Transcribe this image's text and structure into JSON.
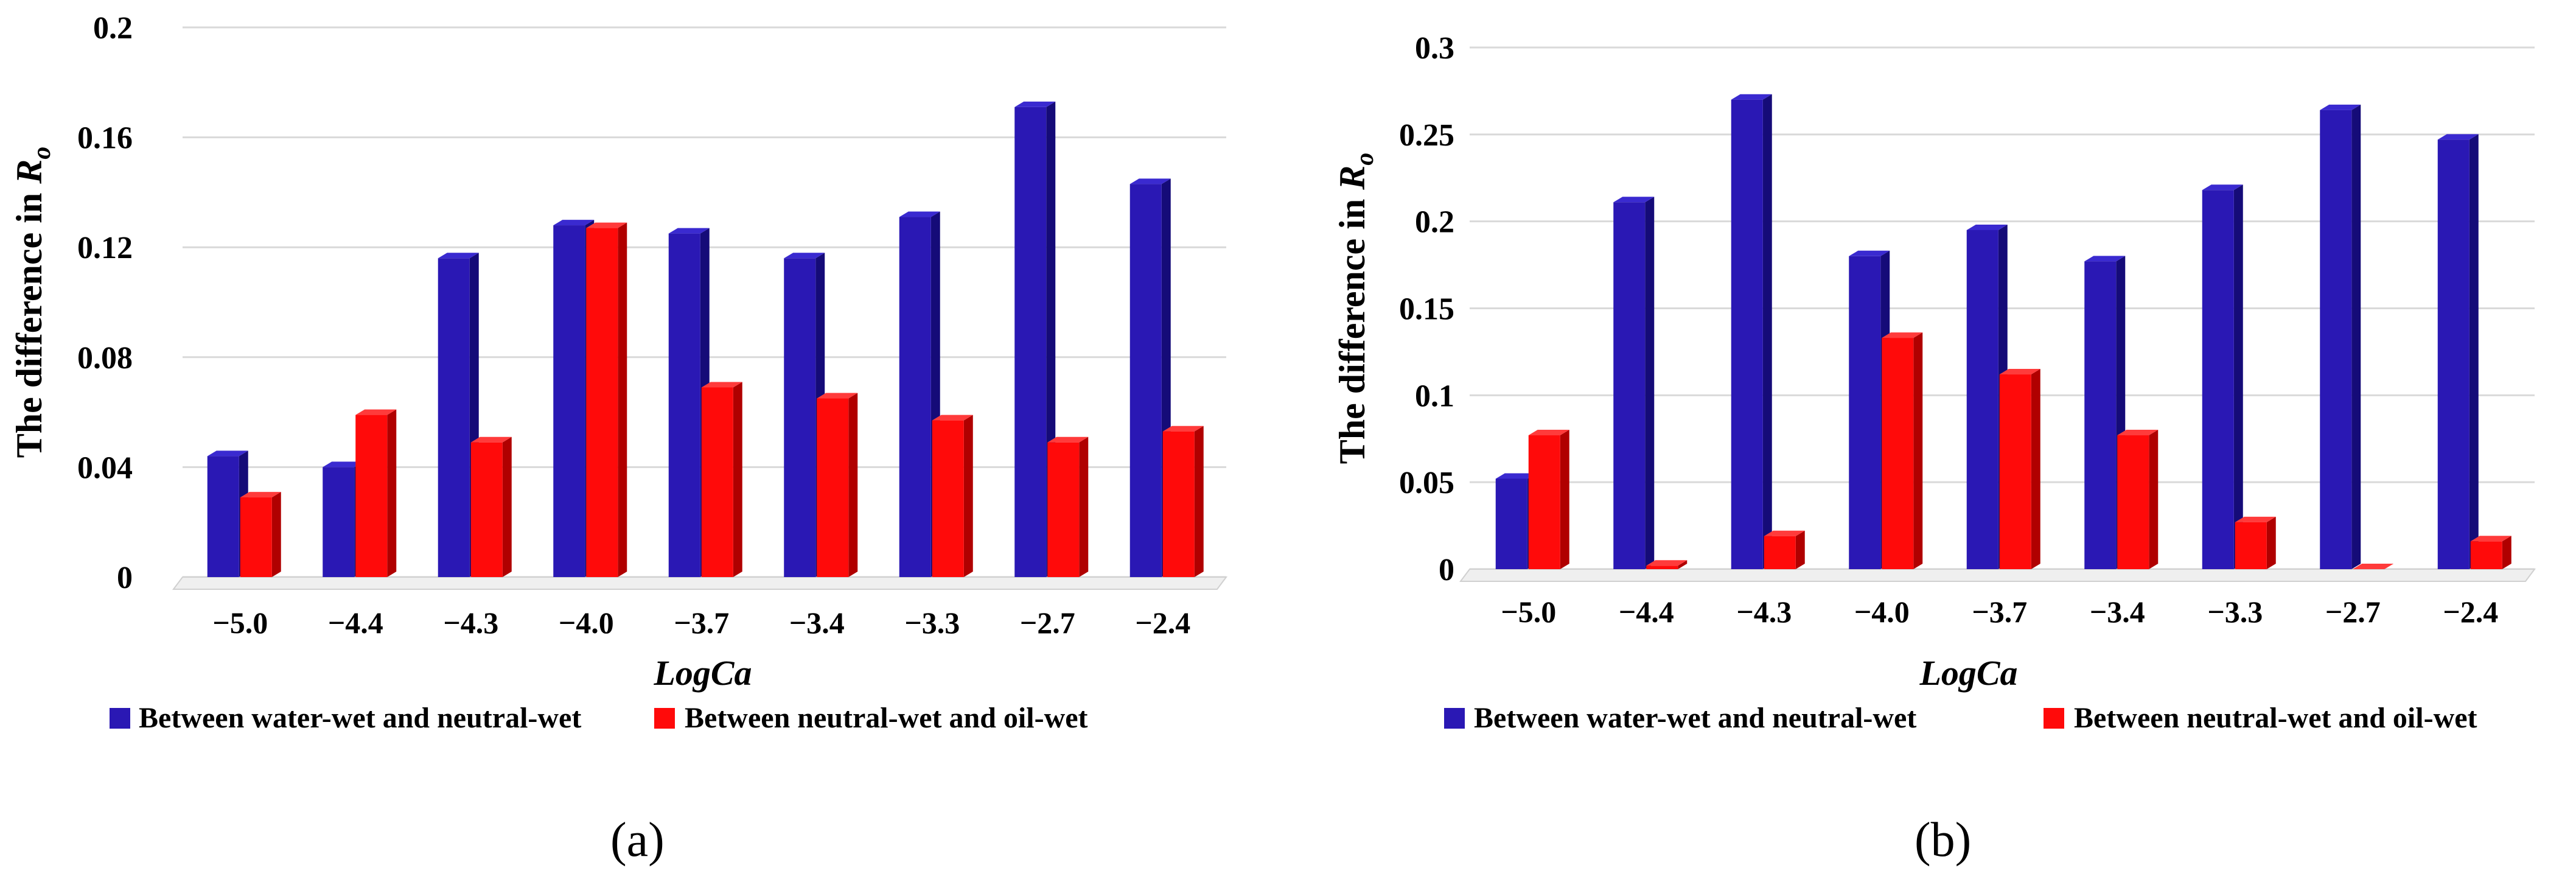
{
  "colors": {
    "series1": "#2a18b4",
    "series1_side": "#150b78",
    "series1_top": "#3a2ad0",
    "series2": "#ff0a0a",
    "series2_side": "#b00000",
    "series2_top": "#ff3b3b",
    "grid": "#d9d9d9",
    "text": "#000000"
  },
  "chart_data": [
    {
      "type": "bar",
      "panel": "a",
      "sublabel": "(a)",
      "xlabel": "LogCa",
      "ylabel": "The difference in R",
      "ylabel_sub": "o",
      "ylim": [
        0,
        0.2
      ],
      "yticks": [
        "0",
        "0.04",
        "0.08",
        "0.12",
        "0.16",
        "0.2"
      ],
      "ytick_values": [
        0,
        0.04,
        0.08,
        0.12,
        0.16,
        0.2
      ],
      "categories": [
        "−5.0",
        "−4.4",
        "−4.3",
        "−4.0",
        "−3.7",
        "−3.4",
        "−3.3",
        "−2.7",
        "−2.4"
      ],
      "series": [
        {
          "name": "Between water-wet and neutral-wet",
          "values": [
            0.044,
            0.04,
            0.116,
            0.128,
            0.125,
            0.116,
            0.131,
            0.171,
            0.143
          ]
        },
        {
          "name": "Between neutral-wet and oil-wet",
          "values": [
            0.029,
            0.059,
            0.049,
            0.127,
            0.069,
            0.065,
            0.057,
            0.049,
            0.053
          ]
        }
      ],
      "legend": "bottom",
      "grid": true
    },
    {
      "type": "bar",
      "panel": "b",
      "sublabel": "(b)",
      "xlabel": "LogCa",
      "ylabel": "The difference in R",
      "ylabel_sub": "o",
      "ylim": [
        0,
        0.3
      ],
      "yticks": [
        "0",
        "0.05",
        "0.1",
        "0.15",
        "0.2",
        "0.25",
        "0.3"
      ],
      "ytick_values": [
        0,
        0.05,
        0.1,
        0.15,
        0.2,
        0.25,
        0.3
      ],
      "categories": [
        "−5.0",
        "−4.4",
        "−4.3",
        "−4.0",
        "−3.7",
        "−3.4",
        "−3.3",
        "−2.7",
        "−2.4"
      ],
      "series": [
        {
          "name": "Between water-wet and neutral-wet",
          "values": [
            0.052,
            0.211,
            0.27,
            0.18,
            0.195,
            0.177,
            0.218,
            0.264,
            0.247
          ]
        },
        {
          "name": "Between neutral-wet and oil-wet",
          "values": [
            0.077,
            0.002,
            0.019,
            0.133,
            0.112,
            0.077,
            0.027,
            0.0,
            0.016
          ]
        }
      ],
      "legend": "bottom",
      "grid": true
    }
  ]
}
